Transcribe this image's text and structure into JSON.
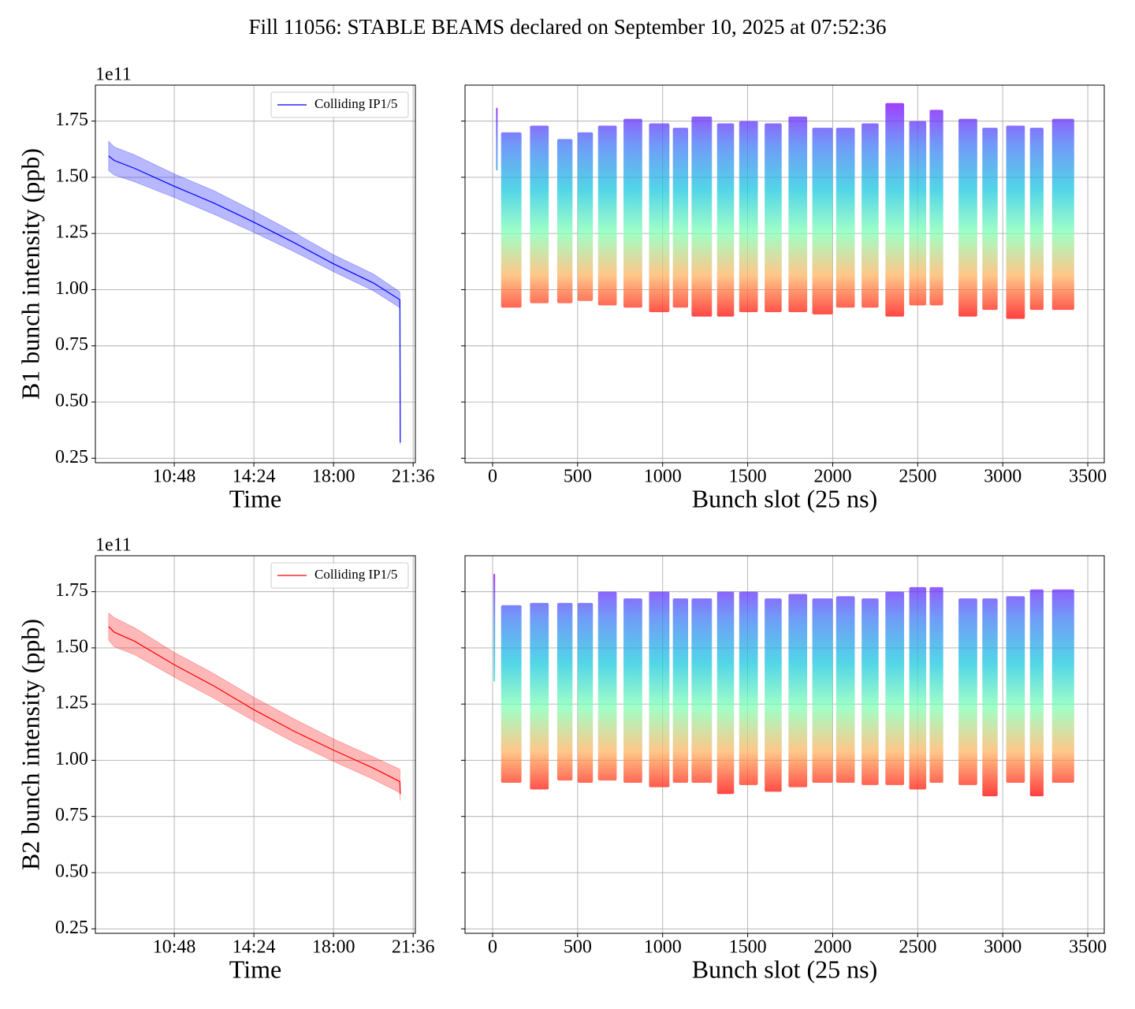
{
  "title": "Fill 11056: STABLE BEAMS declared on September 10, 2025 at 07:52:36",
  "chart_data": [
    {
      "type": "line",
      "xlabel": "Time",
      "ylabel": "B1 bunch intensity (ppb)",
      "y_offset_label": "1e11",
      "x": [
        "07:50",
        "08:05",
        "09:00",
        "10:48",
        "12:36",
        "14:24",
        "16:12",
        "18:00",
        "19:48",
        "21:00",
        "21:01"
      ],
      "series": [
        {
          "name": "Colliding IP1/5",
          "color": "#0000ff",
          "values": [
            1.595,
            1.575,
            1.54,
            1.46,
            1.385,
            1.3,
            1.21,
            1.115,
            1.03,
            0.955,
            0.32
          ],
          "lower": [
            1.53,
            1.51,
            1.48,
            1.41,
            1.335,
            1.255,
            1.17,
            1.08,
            0.995,
            0.92,
            0.31
          ],
          "upper": [
            1.66,
            1.635,
            1.6,
            1.515,
            1.44,
            1.35,
            1.255,
            1.155,
            1.07,
            0.99,
            0.33
          ]
        }
      ],
      "xlim": [
        "07:14",
        "21:42"
      ],
      "xticks": [
        "10:48",
        "14:24",
        "18:00",
        "21:36"
      ],
      "ylim": [
        0.23,
        1.91
      ],
      "yticks": [
        {
          "value": 0.25,
          "label": "0.25"
        },
        {
          "value": 0.5,
          "label": "0.50"
        },
        {
          "value": 0.75,
          "label": "0.75"
        },
        {
          "value": 1.0,
          "label": "1.00"
        },
        {
          "value": 1.25,
          "label": "1.25"
        },
        {
          "value": 1.5,
          "label": "1.50"
        },
        {
          "value": 1.75,
          "label": "1.75"
        }
      ],
      "grid": true,
      "legend": "upper right"
    },
    {
      "type": "scatter",
      "xlabel": "Bunch slot (25 ns)",
      "colormap": [
        "#8000ff",
        "#3f7bf5",
        "#19c7e0",
        "#80ffb4",
        "#ffb360",
        "#ff0000"
      ],
      "trains": {
        "start": [
          20,
          50,
          220,
          380,
          500,
          620,
          770,
          920,
          1060,
          1170,
          1320,
          1450,
          1600,
          1740,
          1880,
          2020,
          2170,
          2310,
          2450,
          2570,
          2740,
          2880,
          3020,
          3160,
          3290
        ],
        "end": [
          30,
          170,
          330,
          470,
          590,
          730,
          880,
          1040,
          1150,
          1290,
          1420,
          1560,
          1700,
          1850,
          2000,
          2130,
          2270,
          2420,
          2550,
          2650,
          2850,
          2970,
          3130,
          3240,
          3420
        ],
        "min": [
          1.53,
          0.92,
          0.94,
          0.94,
          0.95,
          0.93,
          0.92,
          0.9,
          0.92,
          0.88,
          0.88,
          0.9,
          0.9,
          0.9,
          0.89,
          0.92,
          0.92,
          0.88,
          0.93,
          0.93,
          0.88,
          0.91,
          0.87,
          0.91,
          0.91
        ],
        "max": [
          1.81,
          1.7,
          1.73,
          1.67,
          1.7,
          1.73,
          1.76,
          1.74,
          1.72,
          1.77,
          1.74,
          1.75,
          1.74,
          1.77,
          1.72,
          1.72,
          1.74,
          1.83,
          1.75,
          1.8,
          1.76,
          1.72,
          1.73,
          1.72,
          1.76
        ]
      },
      "xlim": [
        -162,
        3597
      ],
      "xticks": [
        0,
        500,
        1000,
        1500,
        2000,
        2500,
        3000,
        3500
      ],
      "ylim": [
        0.23,
        1.91
      ],
      "yticks": [
        0.25,
        0.5,
        0.75,
        1.0,
        1.25,
        1.5,
        1.75
      ],
      "grid": true
    },
    {
      "type": "line",
      "xlabel": "Time",
      "ylabel": "B2 bunch intensity (ppb)",
      "y_offset_label": "1e11",
      "x": [
        "07:50",
        "08:05",
        "09:00",
        "10:48",
        "12:36",
        "14:24",
        "16:12",
        "18:00",
        "19:48",
        "21:00",
        "21:01"
      ],
      "series": [
        {
          "name": "Colliding IP1/5",
          "color": "#ff0000",
          "values": [
            1.595,
            1.57,
            1.53,
            1.425,
            1.33,
            1.225,
            1.13,
            1.045,
            0.965,
            0.905,
            0.85
          ],
          "lower": [
            1.535,
            1.505,
            1.47,
            1.37,
            1.275,
            1.175,
            1.08,
            0.995,
            0.915,
            0.855,
            0.82
          ],
          "upper": [
            1.655,
            1.635,
            1.59,
            1.48,
            1.385,
            1.28,
            1.185,
            1.095,
            1.015,
            0.96,
            0.88
          ]
        }
      ],
      "xlim": [
        "07:14",
        "21:42"
      ],
      "xticks": [
        "10:48",
        "14:24",
        "18:00",
        "21:36"
      ],
      "ylim": [
        0.23,
        1.91
      ],
      "yticks": [
        {
          "value": 0.25,
          "label": "0.25"
        },
        {
          "value": 0.5,
          "label": "0.50"
        },
        {
          "value": 0.75,
          "label": "0.75"
        },
        {
          "value": 1.0,
          "label": "1.00"
        },
        {
          "value": 1.25,
          "label": "1.25"
        },
        {
          "value": 1.5,
          "label": "1.50"
        },
        {
          "value": 1.75,
          "label": "1.75"
        }
      ],
      "grid": true,
      "legend": "upper right"
    },
    {
      "type": "scatter",
      "xlabel": "Bunch slot (25 ns)",
      "colormap": [
        "#8000ff",
        "#3f7bf5",
        "#19c7e0",
        "#80ffb4",
        "#ffb360",
        "#ff0000"
      ],
      "trains": {
        "start": [
          5,
          50,
          220,
          380,
          500,
          620,
          770,
          920,
          1060,
          1170,
          1320,
          1450,
          1600,
          1740,
          1880,
          2020,
          2170,
          2310,
          2450,
          2570,
          2740,
          2880,
          3020,
          3160,
          3290
        ],
        "end": [
          15,
          170,
          330,
          470,
          590,
          730,
          880,
          1040,
          1150,
          1290,
          1420,
          1560,
          1700,
          1850,
          2000,
          2130,
          2270,
          2420,
          2550,
          2650,
          2850,
          2970,
          3130,
          3240,
          3420
        ],
        "min": [
          1.35,
          0.9,
          0.87,
          0.91,
          0.9,
          0.91,
          0.9,
          0.88,
          0.9,
          0.9,
          0.85,
          0.89,
          0.86,
          0.88,
          0.9,
          0.9,
          0.89,
          0.89,
          0.87,
          0.9,
          0.89,
          0.84,
          0.9,
          0.84,
          0.9
        ],
        "max": [
          1.83,
          1.69,
          1.7,
          1.7,
          1.7,
          1.75,
          1.72,
          1.75,
          1.72,
          1.72,
          1.75,
          1.75,
          1.72,
          1.74,
          1.72,
          1.73,
          1.72,
          1.75,
          1.77,
          1.77,
          1.72,
          1.72,
          1.73,
          1.76,
          1.76
        ]
      },
      "xlim": [
        -162,
        3597
      ],
      "xticks": [
        0,
        500,
        1000,
        1500,
        2000,
        2500,
        3000,
        3500
      ],
      "ylim": [
        0.23,
        1.91
      ],
      "yticks": [
        0.25,
        0.5,
        0.75,
        1.0,
        1.25,
        1.5,
        1.75
      ],
      "grid": true
    }
  ]
}
